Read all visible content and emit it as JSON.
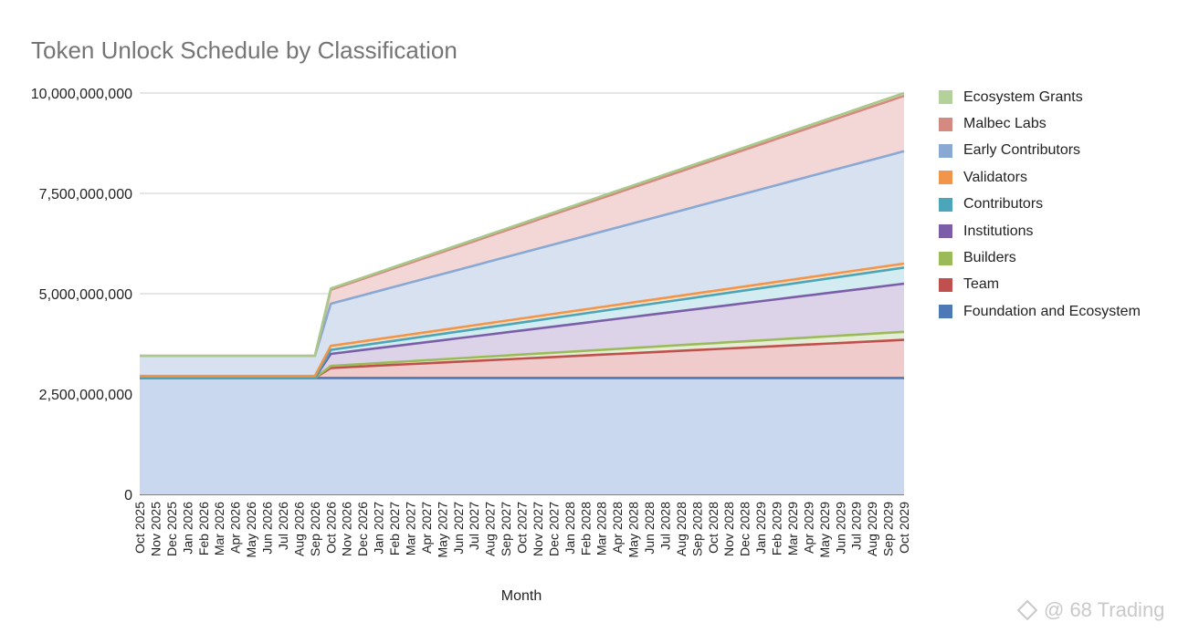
{
  "watermark": "@ 68 Trading",
  "chart_data": {
    "type": "area",
    "stacked": true,
    "title": "Token Unlock Schedule by Classification",
    "xlabel": "Month",
    "ylabel": "",
    "ylim": [
      0,
      10000000000
    ],
    "yticks": [
      0,
      2500000000,
      5000000000,
      7500000000,
      10000000000
    ],
    "ytick_labels": [
      "0",
      "2,500,000,000",
      "5,000,000,000",
      "7,500,000,000",
      "10,000,000,000"
    ],
    "grid": true,
    "legend_position": "right",
    "categories": [
      "Oct 2025",
      "Nov 2025",
      "Dec 2025",
      "Jan 2026",
      "Feb 2026",
      "Mar 2026",
      "Apr 2026",
      "May 2026",
      "Jun 2026",
      "Jul 2026",
      "Aug 2026",
      "Sep 2026",
      "Oct 2026",
      "Nov 2026",
      "Dec 2026",
      "Jan 2027",
      "Feb 2027",
      "Mar 2027",
      "Apr 2027",
      "May 2027",
      "Jun 2027",
      "Jul 2027",
      "Aug 2027",
      "Sep 2027",
      "Oct 2027",
      "Nov 2027",
      "Dec 2027",
      "Jan 2028",
      "Feb 2028",
      "Mar 2028",
      "Apr 2028",
      "May 2028",
      "Jun 2028",
      "Jul 2028",
      "Aug 2028",
      "Sep 2028",
      "Oct 2028",
      "Nov 2028",
      "Dec 2028",
      "Jan 2029",
      "Feb 2029",
      "Mar 2029",
      "Apr 2029",
      "May 2029",
      "Jun 2029",
      "Jul 2029",
      "Aug 2029",
      "Sep 2029",
      "Oct 2029"
    ],
    "series": [
      {
        "name": "Foundation and Ecosystem",
        "color": "#4e79b7",
        "fill": "#c9d8ee",
        "start": 2900000000,
        "step": 0,
        "cliff": 2900000000,
        "end": 2900000000
      },
      {
        "name": "Team",
        "color": "#c0504d",
        "fill": "#efcccb",
        "start": 0,
        "step": 0,
        "cliff": 250000000,
        "end": 950000000
      },
      {
        "name": "Builders",
        "color": "#9bbb59",
        "fill": "#e4edd5",
        "start": 0,
        "step": 0,
        "cliff": 50000000,
        "end": 200000000
      },
      {
        "name": "Institutions",
        "color": "#7b5ea7",
        "fill": "#dcd3e8",
        "start": 0,
        "step": 0,
        "cliff": 300000000,
        "end": 1200000000
      },
      {
        "name": "Contributors",
        "color": "#4aa6b8",
        "fill": "#d2ecf1",
        "start": 0,
        "step": 0,
        "cliff": 100000000,
        "end": 400000000
      },
      {
        "name": "Validators",
        "color": "#f0954a",
        "fill": "#fbe1cb",
        "start": 50000000,
        "step": 50000000,
        "cliff": 100000000,
        "end": 100000000
      },
      {
        "name": "Early Contributors",
        "color": "#8aa8d4",
        "fill": "#d8e1f0",
        "start": 500000000,
        "step": 500000000,
        "cliff": 1050000000,
        "end": 2800000000
      },
      {
        "name": "Malbec Labs",
        "color": "#d48a80",
        "fill": "#f2d7d6",
        "start": 0,
        "step": 0,
        "cliff": 350000000,
        "end": 1380000000
      },
      {
        "name": "Ecosystem Grants",
        "color": "#a9c98a",
        "fill": "#e7efd9",
        "start": 0,
        "step": 0,
        "cliff": 30000000,
        "end": 70000000
      }
    ],
    "legend_order": [
      "Ecosystem Grants",
      "Malbec Labs",
      "Early Contributors",
      "Validators",
      "Contributors",
      "Institutions",
      "Builders",
      "Team",
      "Foundation and Ecosystem"
    ]
  }
}
